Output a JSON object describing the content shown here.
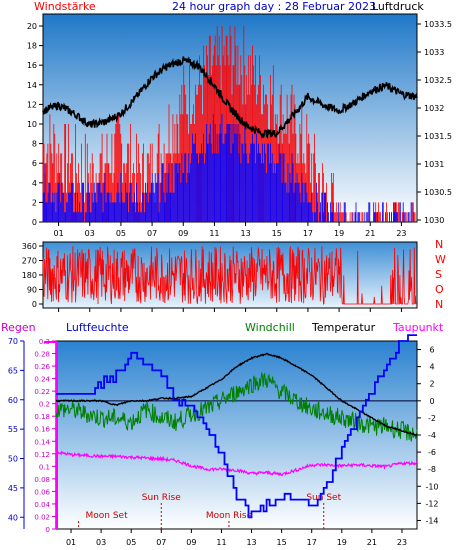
{
  "header": {
    "left_label": "Windstärke",
    "title": "24 hour graph day : 28 Februar 2023",
    "right_label": "Luftdruck"
  },
  "mid": {
    "dir_labels": [
      "N",
      "W",
      "S",
      "O",
      "N"
    ],
    "y_ticks": [
      "360",
      "270",
      "180",
      "90",
      "0"
    ]
  },
  "bottom": {
    "labels": {
      "regen": "Regen",
      "luftfeuchte": "Luftfeuchte",
      "windchill": "Windchill",
      "temperatur": "Temperatur",
      "taupunkt": "Taupunkt"
    },
    "annotations": {
      "moon_set": "Moon Set",
      "sun_rise": "Sun Rise",
      "moon_rise": "Moon Rise",
      "sun_set": "Sun Set"
    }
  },
  "x_ticks": [
    "01",
    "03",
    "05",
    "07",
    "09",
    "11",
    "13",
    "15",
    "17",
    "19",
    "21",
    "23"
  ],
  "colors": {
    "wind_gust": "#ff0000",
    "wind_avg": "#0000ff",
    "pressure": "#000000",
    "direction": "#ff0000",
    "humidity": "#0000ff",
    "windchill": "#008000",
    "temperature": "#000000",
    "dewpoint": "#ff00ff",
    "rain": "#ff00ff",
    "bg_top": "#1f78c8",
    "bg_bottom": "#ffffff"
  },
  "chart_data": [
    {
      "type": "line",
      "title": "24 hour graph day : 28 Februar 2023",
      "x": [
        0,
        1,
        2,
        3,
        4,
        5,
        6,
        7,
        8,
        9,
        10,
        11,
        12,
        13,
        14,
        15,
        16,
        17,
        18,
        19,
        20,
        21,
        22,
        23,
        24
      ],
      "series": [
        {
          "name": "Windstärke",
          "axis": "left",
          "values": [
            8,
            7,
            6,
            5,
            6,
            8,
            5,
            5,
            9,
            12,
            14,
            16,
            17,
            16,
            14,
            12,
            10,
            7,
            3,
            1,
            0,
            1,
            1,
            1,
            1
          ]
        },
        {
          "name": "Windstärke (avg)",
          "axis": "left",
          "values": [
            4,
            3,
            2,
            2,
            3,
            4,
            2,
            3,
            4,
            6,
            8,
            9,
            9,
            8,
            7,
            6,
            5,
            3,
            1,
            0,
            0,
            0,
            0,
            0,
            0
          ]
        },
        {
          "name": "Luftdruck",
          "axis": "right",
          "values": [
            1031.95,
            1032.05,
            1031.9,
            1031.7,
            1031.75,
            1031.9,
            1032.2,
            1032.55,
            1032.75,
            1032.85,
            1032.75,
            1032.4,
            1032.0,
            1031.7,
            1031.55,
            1031.55,
            1031.85,
            1032.2,
            1032.05,
            1031.95,
            1032.1,
            1032.3,
            1032.4,
            1032.25,
            1032.2
          ]
        }
      ],
      "ylim_left": [
        0,
        20
      ],
      "yticks_left": [
        "0",
        "2",
        "4",
        "6",
        "8",
        "10",
        "12",
        "14",
        "16",
        "18",
        "20"
      ],
      "ylim_right": [
        1030,
        1033.5
      ],
      "yticks_right": [
        "1030",
        "1030.5",
        "1031",
        "1031.5",
        "1032",
        "1032.5",
        "1033",
        "1033.5"
      ]
    },
    {
      "type": "line",
      "series": [
        {
          "name": "Windrichtung",
          "values": [
            180,
            270,
            90,
            300,
            180,
            30,
            270,
            120,
            320,
            200,
            60,
            280,
            150,
            340,
            100,
            250,
            200,
            60,
            300,
            0,
            0,
            0,
            0,
            270,
            0
          ]
        }
      ],
      "ylim": [
        0,
        360
      ]
    },
    {
      "type": "line",
      "x": [
        0,
        1,
        2,
        3,
        4,
        5,
        6,
        7,
        8,
        9,
        10,
        11,
        12,
        13,
        14,
        15,
        16,
        17,
        18,
        19,
        20,
        21,
        22,
        23,
        24
      ],
      "series": [
        {
          "name": "Luftfeuchte",
          "axis": "left",
          "values": [
            62,
            61,
            61,
            63,
            64,
            68,
            66,
            64,
            60,
            59,
            55,
            50,
            44,
            40,
            42,
            43,
            43,
            42,
            45,
            52,
            57,
            62,
            66,
            70,
            71
          ]
        },
        {
          "name": "Windchill",
          "axis": "right",
          "values": [
            -1,
            -1,
            -1.5,
            -2,
            -2,
            -2.5,
            -1,
            -2,
            -2.5,
            -1.5,
            -1,
            0,
            1,
            2,
            2.5,
            1,
            0,
            -1,
            -1.5,
            -2,
            -2.5,
            -3,
            -3,
            -3.5,
            -4
          ]
        },
        {
          "name": "Temperatur",
          "axis": "right",
          "values": [
            0,
            0,
            0,
            0,
            -0.5,
            0,
            0,
            0.3,
            0.3,
            0.5,
            1.5,
            2.5,
            4,
            5,
            5.5,
            5,
            4,
            3,
            1.5,
            0,
            -1,
            -2,
            -3,
            -3.5,
            -4
          ]
        },
        {
          "name": "Taupunkt",
          "axis": "right",
          "values": [
            -6,
            -6.3,
            -6.4,
            -6.5,
            -6.5,
            -6.6,
            -6.7,
            -6.8,
            -7,
            -7.6,
            -8,
            -8,
            -8.1,
            -8.5,
            -8.4,
            -8.6,
            -8.1,
            -7.5,
            -7.5,
            -7.6,
            -7.5,
            -7.6,
            -7.7,
            -7.3,
            -7.3
          ]
        },
        {
          "name": "Regen",
          "axis": "rain",
          "values": [
            0,
            0,
            0,
            0,
            0,
            0,
            0,
            0,
            0,
            0,
            0,
            0,
            0,
            0,
            0,
            0,
            0,
            0,
            0,
            0,
            0,
            0,
            0,
            0,
            0
          ]
        }
      ],
      "ylim_humidity": [
        38,
        70
      ],
      "yticks_humidity": [
        "40",
        "45",
        "50",
        "55",
        "60",
        "65",
        "70"
      ],
      "ylim_rain": [
        0,
        0.3
      ],
      "yticks_rain": [
        "0",
        "0.02",
        "0.04",
        "0.06",
        "0.08",
        "0.1",
        "0.12",
        "0.14",
        "0.16",
        "0.18",
        "0.2",
        "0.22",
        "0.24",
        "0.26",
        "0.28",
        "0.3"
      ],
      "ylim_temp": [
        -15,
        7
      ],
      "yticks_temp": [
        "-14",
        "-12",
        "-10",
        "-8",
        "-6",
        "-4",
        "-2",
        "0",
        "2",
        "4",
        "6"
      ],
      "annotations": [
        {
          "label": "Moon Set",
          "x": 1.5
        },
        {
          "label": "Sun Rise",
          "x": 7.0
        },
        {
          "label": "Moon Rise",
          "x": 11.5
        },
        {
          "label": "Sun Set",
          "x": 17.8
        }
      ]
    }
  ]
}
